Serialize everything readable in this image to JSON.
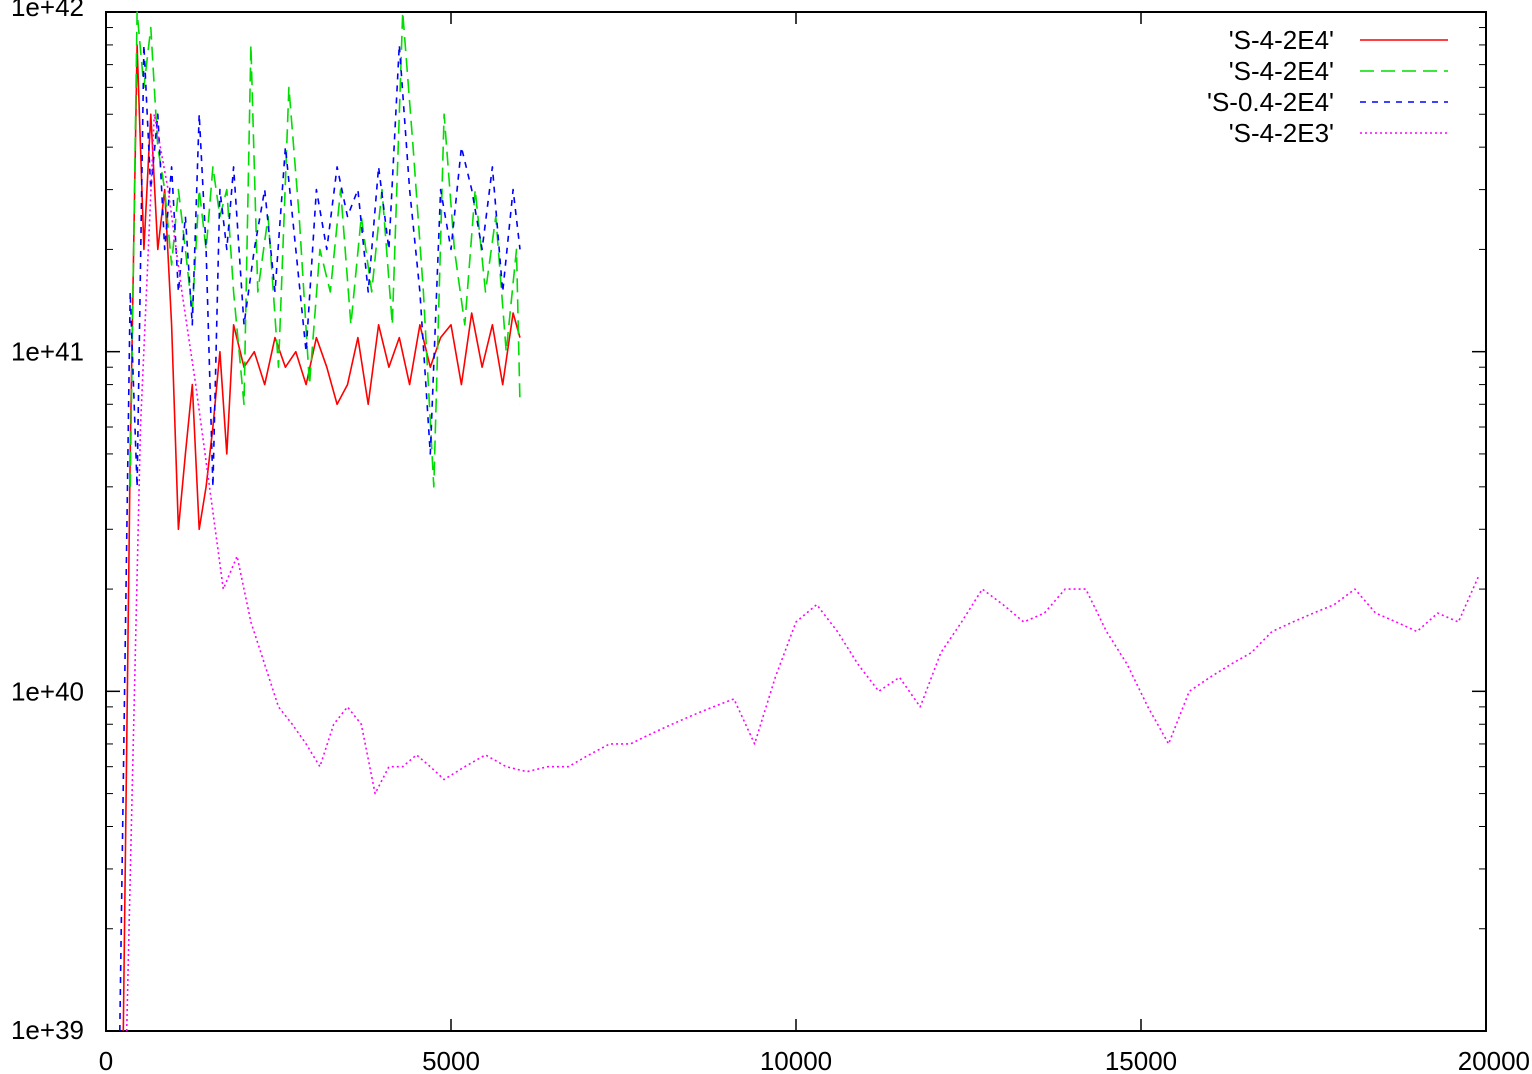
{
  "chart_data": {
    "type": "line",
    "x_scale": "linear",
    "y_scale": "log",
    "xlim": [
      0,
      20000
    ],
    "ylim": [
      1e+39,
      1e+42
    ],
    "x_ticks": [
      {
        "value": 0,
        "label": "0"
      },
      {
        "value": 5000,
        "label": "5000"
      },
      {
        "value": 10000,
        "label": "10000"
      },
      {
        "value": 15000,
        "label": "15000"
      },
      {
        "value": 20000,
        "label": "20000"
      }
    ],
    "y_ticks": [
      {
        "value": 1e+39,
        "label": "1e+39"
      },
      {
        "value": 1e+40,
        "label": "1e+40"
      },
      {
        "value": 1e+41,
        "label": "1e+41"
      },
      {
        "value": 1e+42,
        "label": "1e+42"
      }
    ],
    "grid": false,
    "legend_position": "top-right",
    "series": [
      {
        "name": "'S-4-2E4'",
        "color": "#ff0000",
        "dash": "solid",
        "x": [
          250,
          350,
          450,
          550,
          650,
          750,
          850,
          950,
          1050,
          1150,
          1250,
          1350,
          1450,
          1550,
          1650,
          1750,
          1850,
          2000,
          2150,
          2300,
          2450,
          2600,
          2750,
          2900,
          3050,
          3200,
          3350,
          3500,
          3650,
          3800,
          3950,
          4100,
          4250,
          4400,
          4550,
          4700,
          4850,
          5000,
          5150,
          5300,
          5450,
          5600,
          5750,
          5900,
          6000
        ],
        "y": [
          1e+39,
          5e+40,
          8e+41,
          2e+41,
          5e+41,
          2e+41,
          3e+41,
          1.2e+41,
          3e+40,
          5e+40,
          8e+40,
          3e+40,
          4e+40,
          6e+40,
          1e+41,
          5e+40,
          1.2e+41,
          9e+40,
          1e+41,
          8e+40,
          1.1e+41,
          9e+40,
          1e+41,
          8e+40,
          1.1e+41,
          9e+40,
          7e+40,
          8e+40,
          1.1e+41,
          7e+40,
          1.2e+41,
          9e+40,
          1.1e+41,
          8e+40,
          1.2e+41,
          9e+40,
          1.1e+41,
          1.2e+41,
          8e+40,
          1.3e+41,
          9e+40,
          1.2e+41,
          8e+40,
          1.3e+41,
          1.1e+41
        ]
      },
      {
        "name": "'S-4-2E4'",
        "color": "#00dd00",
        "dash": "14,7",
        "x": [
          350,
          450,
          550,
          650,
          750,
          850,
          950,
          1050,
          1150,
          1250,
          1350,
          1450,
          1550,
          1650,
          1750,
          1850,
          2000,
          2100,
          2200,
          2350,
          2500,
          2650,
          2800,
          2950,
          3100,
          3250,
          3400,
          3550,
          3700,
          3850,
          4000,
          4150,
          4300,
          4450,
          4600,
          4750,
          4900,
          5050,
          5200,
          5350,
          5500,
          5650,
          5800,
          5950,
          6000
        ],
        "y": [
          4e+40,
          1e+42,
          6e+41,
          9e+41,
          4e+41,
          3e+41,
          1.8e+41,
          3e+41,
          2e+41,
          1.3e+41,
          3e+41,
          2e+41,
          3.5e+41,
          2.5e+41,
          3e+41,
          1.5e+41,
          7e+40,
          8e+41,
          1.5e+41,
          2.5e+41,
          9e+40,
          6e+41,
          2.5e+41,
          8e+40,
          2e+41,
          1.5e+41,
          3e+41,
          1.2e+41,
          2.5e+41,
          1.5e+41,
          3e+41,
          1.2e+41,
          1e+42,
          4e+41,
          1.5e+41,
          4e+40,
          5e+41,
          2e+41,
          1.2e+41,
          3e+41,
          1.5e+41,
          2.5e+41,
          1e+41,
          2e+41,
          7e+40
        ]
      },
      {
        "name": "'S-0.4-2E4'",
        "color": "#0000ff",
        "dash": "6,6",
        "x": [
          200,
          350,
          450,
          550,
          650,
          750,
          850,
          950,
          1050,
          1150,
          1250,
          1350,
          1450,
          1550,
          1650,
          1750,
          1850,
          2000,
          2150,
          2300,
          2450,
          2600,
          2750,
          2900,
          3050,
          3200,
          3350,
          3500,
          3650,
          3800,
          3950,
          4100,
          4250,
          4400,
          4550,
          4700,
          4850,
          5000,
          5150,
          5300,
          5450,
          5600,
          5750,
          5900,
          6000
        ],
        "y": [
          1e+39,
          1.5e+41,
          4e+40,
          8e+41,
          3e+41,
          5e+41,
          2e+41,
          3.5e+41,
          1.5e+41,
          2.5e+41,
          1.2e+41,
          5e+41,
          2e+41,
          4e+40,
          3e+41,
          2e+41,
          3.5e+41,
          1.2e+41,
          2e+41,
          3e+41,
          1.5e+41,
          4e+41,
          2e+41,
          1e+41,
          3e+41,
          2e+41,
          3.5e+41,
          2.5e+41,
          3e+41,
          1.5e+41,
          3.5e+41,
          2e+41,
          8e+41,
          3e+41,
          1.5e+41,
          5e+40,
          3e+41,
          2e+41,
          4e+41,
          3e+41,
          2e+41,
          3.5e+41,
          1.5e+41,
          3e+41,
          2e+41
        ]
      },
      {
        "name": "'S-4-2E3'",
        "color": "#ff00ff",
        "dash": "2,3",
        "x": [
          300,
          500,
          700,
          900,
          1100,
          1300,
          1500,
          1700,
          1900,
          2100,
          2300,
          2500,
          2700,
          2900,
          3100,
          3300,
          3500,
          3700,
          3900,
          4100,
          4300,
          4500,
          4700,
          4900,
          5200,
          5500,
          5800,
          6100,
          6400,
          6700,
          7000,
          7300,
          7600,
          7900,
          8200,
          8500,
          8800,
          9100,
          9400,
          9700,
          10000,
          10300,
          10600,
          10900,
          11200,
          11500,
          11800,
          12100,
          12400,
          12700,
          13000,
          13300,
          13600,
          13900,
          14200,
          14500,
          14800,
          15100,
          15400,
          15700,
          16000,
          16300,
          16600,
          16900,
          17200,
          17500,
          17800,
          18100,
          18400,
          18700,
          19000,
          19300,
          19600,
          19900
        ],
        "y": [
          1e+39,
          6e+40,
          5e+41,
          3e+41,
          1.5e+41,
          8e+40,
          4e+40,
          2e+40,
          2.5e+40,
          1.6e+40,
          1.2e+40,
          9e+39,
          8e+39,
          7e+39,
          6e+39,
          8e+39,
          9e+39,
          8e+39,
          5e+39,
          6e+39,
          6e+39,
          6.5e+39,
          6e+39,
          5.5e+39,
          6e+39,
          6.5e+39,
          6e+39,
          5.8e+39,
          6e+39,
          6e+39,
          6.5e+39,
          7e+39,
          7e+39,
          7.5e+39,
          8e+39,
          8.5e+39,
          9e+39,
          9.5e+39,
          7e+39,
          1.1e+40,
          1.6e+40,
          1.8e+40,
          1.5e+40,
          1.2e+40,
          1e+40,
          1.1e+40,
          9e+39,
          1.3e+40,
          1.6e+40,
          2e+40,
          1.8e+40,
          1.6e+40,
          1.7e+40,
          2e+40,
          2e+40,
          1.5e+40,
          1.2e+40,
          9e+39,
          7e+39,
          1e+40,
          1.1e+40,
          1.2e+40,
          1.3e+40,
          1.5e+40,
          1.6e+40,
          1.7e+40,
          1.8e+40,
          2e+40,
          1.7e+40,
          1.6e+40,
          1.5e+40,
          1.7e+40,
          1.6e+40,
          2.2e+40
        ]
      }
    ]
  }
}
